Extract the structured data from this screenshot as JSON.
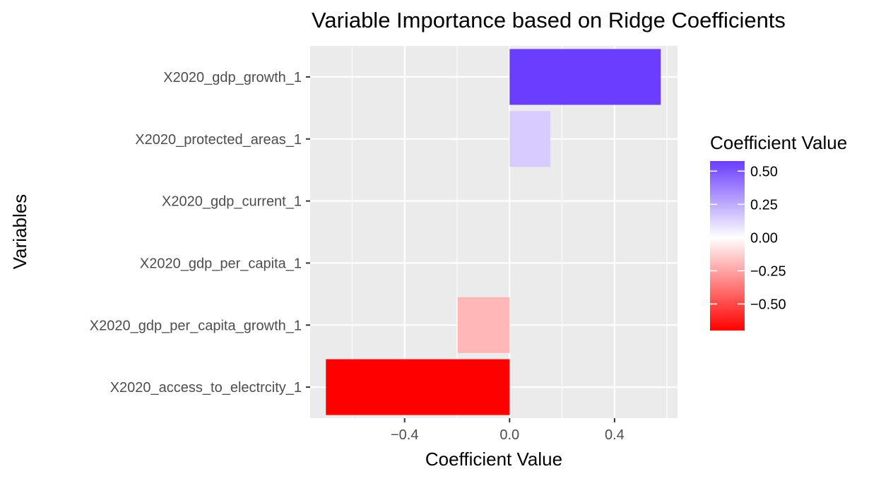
{
  "chart_data": {
    "type": "bar",
    "orientation": "horizontal",
    "title": "Variable Importance based on Ridge Coefficients",
    "xlabel": "Coefficient Value",
    "ylabel": "Variables",
    "categories": [
      "X2020_gdp_growth_1",
      "X2020_protected_areas_1",
      "X2020_gdp_current_1",
      "X2020_gdp_per_capita_1",
      "X2020_gdp_per_capita_growth_1",
      "X2020_access_to_electrcity_1"
    ],
    "values": [
      0.576,
      0.155,
      0.0,
      0.0,
      -0.198,
      -0.7
    ],
    "xlim": [
      -0.76,
      0.64
    ],
    "xticks": [
      -0.4,
      0.0,
      0.4
    ],
    "xtick_labels": [
      "−0.4",
      "0.0",
      "0.4"
    ],
    "grid": true,
    "background": "#ebebeb",
    "legend": {
      "title": "Coefficient Value",
      "position": "right",
      "type": "colorbar",
      "ticks": [
        0.5,
        0.25,
        0.0,
        -0.25,
        -0.5
      ],
      "tick_labels": [
        "0.50",
        "0.25",
        "0.00",
        "−0.25",
        "−0.50"
      ],
      "low_color": "#ff0000",
      "mid_color": "#ffffff",
      "high_color": "#6a3dff",
      "range": [
        -0.7,
        0.576
      ]
    }
  }
}
